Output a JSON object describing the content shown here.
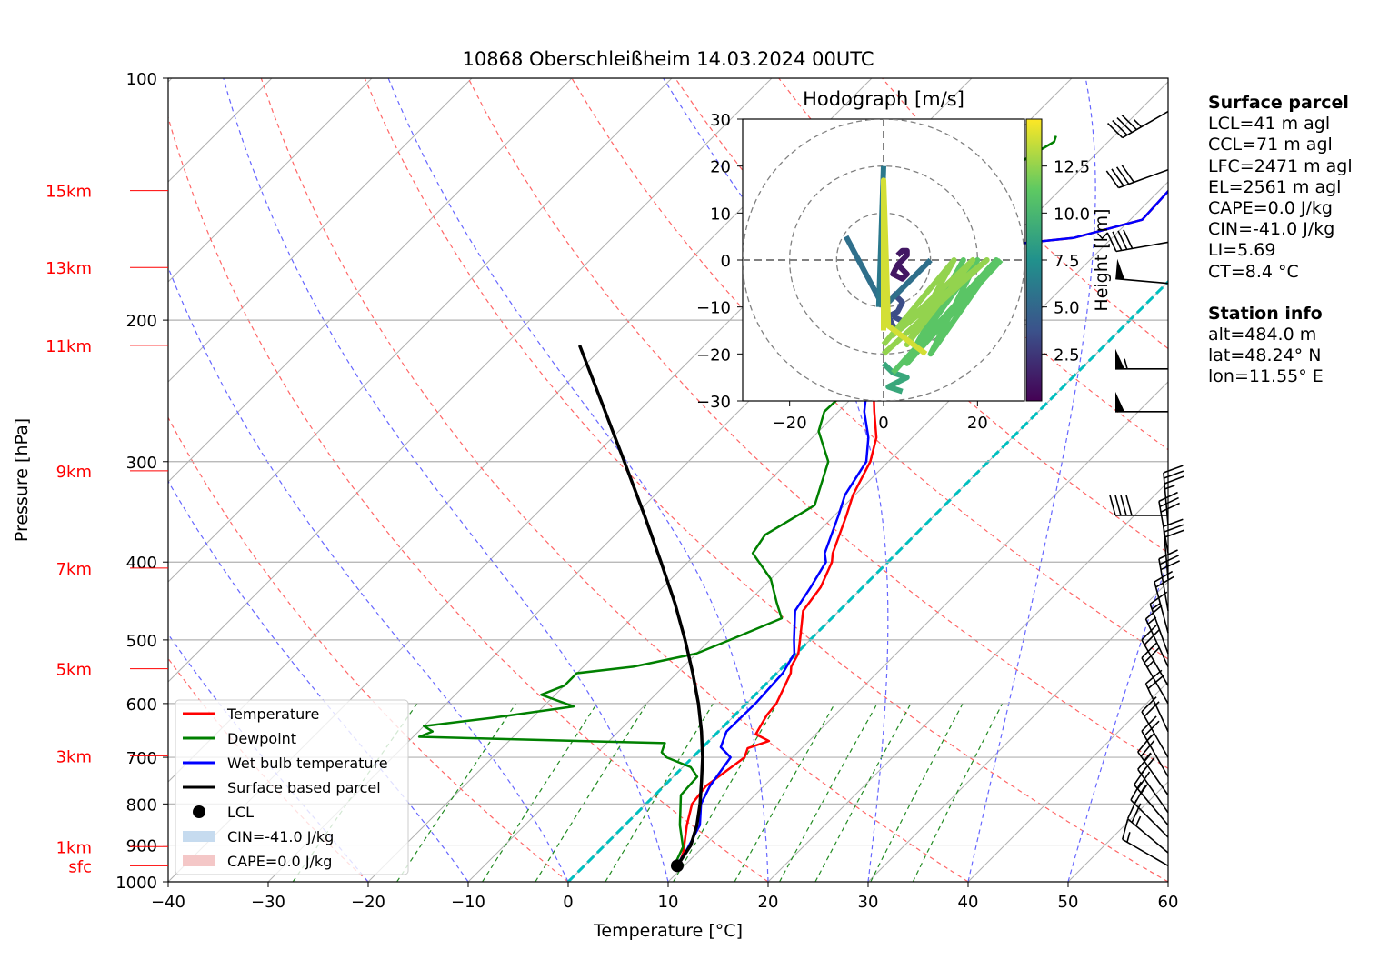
{
  "title": "10868 Oberschleißheim 14.03.2024 00UTC",
  "colors": {
    "temperature": "#ff0000",
    "dewpoint": "#008000",
    "wetbulb": "#0000ff",
    "parcel": "#000000",
    "dry_adiabat": "#ff6666",
    "moist_adiabat": "#6666ff",
    "mixing_ratio": "#228b22",
    "freezing_line": "#00bfbf",
    "height_label": "#ff0000"
  },
  "chart_data": {
    "type": "line",
    "subtype": "skew-t log-p",
    "title": "10868 Oberschleißheim 14.03.2024 00UTC",
    "xlabel": "Temperature [°C]",
    "ylabel": "Pressure [hPa]",
    "xlim": [
      -40,
      60
    ],
    "ylim": [
      1000,
      100
    ],
    "y_scale": "log",
    "grid": true,
    "legend_position": "lower-left",
    "x_ticks": [
      "−40",
      "−30",
      "−20",
      "−10",
      "0",
      "10",
      "20",
      "30",
      "40",
      "50",
      "60"
    ],
    "y_ticks": [
      "100",
      "200",
      "300",
      "400",
      "500",
      "600",
      "700",
      "800",
      "900",
      "1000"
    ],
    "height_labels": [
      {
        "label": "15km",
        "p": 138
      },
      {
        "label": "13km",
        "p": 172
      },
      {
        "label": "11km",
        "p": 215
      },
      {
        "label": "9km",
        "p": 308
      },
      {
        "label": "7km",
        "p": 407
      },
      {
        "label": "5km",
        "p": 543
      },
      {
        "label": "3km",
        "p": 697
      },
      {
        "label": "1km",
        "p": 904
      },
      {
        "label": "sfc",
        "p": 955
      }
    ],
    "series": [
      {
        "name": "Temperature",
        "points": [
          [
            9.4,
            955
          ],
          [
            8.6,
            920
          ],
          [
            6.2,
            850
          ],
          [
            4.6,
            800
          ],
          [
            4.2,
            760
          ],
          [
            5.2,
            700
          ],
          [
            4.6,
            682
          ],
          [
            6,
            668
          ],
          [
            4.0,
            655
          ],
          [
            3.2,
            620
          ],
          [
            3.0,
            600
          ],
          [
            1.4,
            550
          ],
          [
            0.8,
            540
          ],
          [
            0.2,
            520
          ],
          [
            -1,
            500
          ],
          [
            -3.6,
            460
          ],
          [
            -4.2,
            430
          ],
          [
            -5.6,
            400
          ],
          [
            -6.4,
            390
          ],
          [
            -8.8,
            350
          ],
          [
            -10.2,
            330
          ],
          [
            -11.8,
            300
          ],
          [
            -13.6,
            280
          ],
          [
            -16.4,
            260
          ],
          [
            -20.8,
            230
          ],
          [
            -24,
            210
          ],
          [
            -21.2,
            162
          ],
          [
            -13.8,
            158
          ],
          [
            -8.8,
            150
          ],
          [
            -9.2,
            132
          ],
          [
            -6.6,
            128
          ],
          [
            -6.2,
            122
          ],
          [
            -3.6,
            118
          ],
          [
            -3.8,
            115
          ],
          [
            -2.6,
            110
          ],
          [
            -3.0,
            107
          ]
        ]
      },
      {
        "name": "Dewpoint",
        "points": [
          [
            9.0,
            955
          ],
          [
            8.0,
            905
          ],
          [
            5.5,
            850
          ],
          [
            2.6,
            780
          ],
          [
            2.4,
            740
          ],
          [
            0.8,
            720
          ],
          [
            -2.6,
            700
          ],
          [
            -3.6,
            690
          ],
          [
            -4.2,
            672
          ],
          [
            -29.4,
            660
          ],
          [
            -28.6,
            650
          ],
          [
            -30,
            640
          ],
          [
            -24,
            625
          ],
          [
            -17,
            605
          ],
          [
            -21.4,
            585
          ],
          [
            -20,
            570
          ],
          [
            -20,
            550
          ],
          [
            -15,
            540
          ],
          [
            -10,
            520
          ],
          [
            -8,
            500
          ],
          [
            -5,
            470
          ],
          [
            -7,
            450
          ],
          [
            -10,
            420
          ],
          [
            -14.4,
            390
          ],
          [
            -15,
            370
          ],
          [
            -13,
            340
          ],
          [
            -16,
            300
          ],
          [
            -20,
            275
          ],
          [
            -21.4,
            260
          ],
          [
            -21.2,
            240
          ],
          [
            -24.8,
            220
          ],
          [
            -25.8,
            200
          ],
          [
            -29.6,
            185
          ],
          [
            -29,
            178
          ],
          [
            -30.4,
            168
          ],
          [
            -31,
            155
          ],
          [
            -30.8,
            148
          ],
          [
            -28,
            138
          ],
          [
            -26.4,
            125
          ],
          [
            -25.4,
            120
          ],
          [
            -25.8,
            118
          ]
        ]
      },
      {
        "name": "Wet bulb temperature",
        "points": [
          [
            9.2,
            955
          ],
          [
            8.8,
            920
          ],
          [
            7.5,
            850
          ],
          [
            5.5,
            800
          ],
          [
            4.6,
            760
          ],
          [
            3.8,
            700
          ],
          [
            1.8,
            680
          ],
          [
            0.8,
            650
          ],
          [
            0.9,
            600
          ],
          [
            0.6,
            550
          ],
          [
            -0.2,
            520
          ],
          [
            -1.6,
            500
          ],
          [
            -4.4,
            460
          ],
          [
            -5.2,
            430
          ],
          [
            -6.2,
            400
          ],
          [
            -7.2,
            390
          ],
          [
            -9.6,
            350
          ],
          [
            -11,
            330
          ],
          [
            -12.2,
            300
          ],
          [
            -14.4,
            280
          ],
          [
            -17.4,
            260
          ],
          [
            -21.2,
            230
          ],
          [
            -24,
            210
          ],
          [
            -21.2,
            162
          ],
          [
            -13.8,
            158
          ],
          [
            -8.8,
            150
          ],
          [
            -9.2,
            132
          ],
          [
            -6.6,
            128
          ],
          [
            -6.2,
            122
          ],
          [
            -3.6,
            118
          ],
          [
            -3.8,
            115
          ],
          [
            -2.6,
            110
          ],
          [
            -3.0,
            107
          ]
        ]
      },
      {
        "name": "Surface based parcel",
        "points": [
          [
            9.3,
            955
          ],
          [
            8.6,
            900
          ],
          [
            7.2,
            850
          ],
          [
            5.4,
            800
          ],
          [
            3.3,
            750
          ],
          [
            1.0,
            700
          ],
          [
            -1.7,
            650
          ],
          [
            -4.8,
            600
          ],
          [
            -8.4,
            550
          ],
          [
            -12.5,
            500
          ],
          [
            -17.2,
            450
          ],
          [
            -22.7,
            400
          ],
          [
            -29.0,
            350
          ],
          [
            -36.4,
            300
          ],
          [
            -45.2,
            250
          ],
          [
            -52.5,
            215
          ]
        ]
      }
    ],
    "lcl": {
      "name": "LCL",
      "t": 9.3,
      "p": 955
    },
    "legend": [
      "Temperature",
      "Dewpoint",
      "Wet bulb temperature",
      "Surface based parcel",
      "LCL",
      "CIN=-41.0 J/kg",
      "CAPE=0.0 J/kg"
    ],
    "freezing_line_t": 0,
    "dry_adiabats_theta_c": [
      -40,
      -20,
      0,
      20,
      40,
      60,
      80,
      100,
      120,
      140,
      160
    ],
    "moist_adiabats_t_c": [
      -20,
      -10,
      0,
      10,
      20,
      30,
      40,
      50
    ],
    "mixing_ratio_lines_gpkg": [
      0.4,
      1,
      2,
      3,
      5,
      8,
      12,
      16,
      20,
      28,
      36
    ],
    "wind_barbs": [
      {
        "p": 955,
        "dir": 300,
        "speed_kt": 15
      },
      {
        "p": 920,
        "dir": 310,
        "speed_kt": 25
      },
      {
        "p": 880,
        "dir": 315,
        "speed_kt": 20
      },
      {
        "p": 850,
        "dir": 320,
        "speed_kt": 25
      },
      {
        "p": 820,
        "dir": 325,
        "speed_kt": 20
      },
      {
        "p": 780,
        "dir": 325,
        "speed_kt": 25
      },
      {
        "p": 740,
        "dir": 330,
        "speed_kt": 25
      },
      {
        "p": 700,
        "dir": 330,
        "speed_kt": 20
      },
      {
        "p": 650,
        "dir": 335,
        "speed_kt": 20
      },
      {
        "p": 600,
        "dir": 330,
        "speed_kt": 25
      },
      {
        "p": 570,
        "dir": 330,
        "speed_kt": 20
      },
      {
        "p": 540,
        "dir": 335,
        "speed_kt": 15
      },
      {
        "p": 520,
        "dir": 340,
        "speed_kt": 15
      },
      {
        "p": 490,
        "dir": 345,
        "speed_kt": 20
      },
      {
        "p": 460,
        "dir": 350,
        "speed_kt": 30
      },
      {
        "p": 420,
        "dir": 355,
        "speed_kt": 30
      },
      {
        "p": 390,
        "dir": 350,
        "speed_kt": 30
      },
      {
        "p": 360,
        "dir": 355,
        "speed_kt": 35
      },
      {
        "p": 350,
        "dir": 270,
        "speed_kt": 40
      },
      {
        "p": 260,
        "dir": 270,
        "speed_kt": 50
      },
      {
        "p": 230,
        "dir": 270,
        "speed_kt": 55
      },
      {
        "p": 180,
        "dir": 275,
        "speed_kt": 50
      },
      {
        "p": 160,
        "dir": 260,
        "speed_kt": 40
      },
      {
        "p": 130,
        "dir": 250,
        "speed_kt": 40
      },
      {
        "p": 110,
        "dir": 240,
        "speed_kt": 45
      }
    ]
  },
  "hodograph": {
    "title": "Hodograph [m/s]",
    "xlim": [
      -30,
      30
    ],
    "ylim": [
      -30,
      30
    ],
    "x_ticks": [
      "−20",
      "0",
      "20"
    ],
    "y_ticks": [
      "30",
      "20",
      "10",
      "0",
      "−10",
      "−20",
      "−30"
    ],
    "rings_ms": [
      10,
      20,
      30
    ],
    "colorbar_label": "Height [km]",
    "colorbar_ticks": [
      "12.5",
      "10.0",
      "7.5",
      "5.0",
      "2.5"
    ],
    "colorbar_max": 15,
    "traces": [
      {
        "h": 1.0,
        "pts": [
          [
            3,
            -1
          ],
          [
            4,
            -2
          ],
          [
            5,
            -3
          ],
          [
            4,
            -4
          ],
          [
            2,
            -3
          ],
          [
            3,
            -1
          ],
          [
            5,
            1
          ],
          [
            5,
            2
          ],
          [
            4,
            2
          ],
          [
            3,
            1
          ]
        ]
      },
      {
        "h": 3.5,
        "pts": [
          [
            2,
            -7
          ],
          [
            4,
            -9
          ],
          [
            3,
            -11
          ],
          [
            1,
            -12
          ],
          [
            2,
            -14
          ],
          [
            3,
            -15
          ],
          [
            4,
            -13
          ],
          [
            2,
            -12
          ]
        ]
      },
      {
        "h": 5.5,
        "pts": [
          [
            -8,
            5
          ],
          [
            0,
            -10
          ],
          [
            10,
            0
          ]
        ]
      },
      {
        "h": 6.0,
        "pts": [
          [
            0,
            20
          ],
          [
            -1,
            -10
          ]
        ]
      },
      {
        "h": 9.0,
        "pts": [
          [
            0,
            -22
          ],
          [
            2,
            -24
          ],
          [
            5,
            -25
          ],
          [
            3,
            -26
          ],
          [
            1,
            -27
          ],
          [
            4,
            -28
          ]
        ]
      },
      {
        "h": 11.0,
        "pts": [
          [
            2,
            -24
          ],
          [
            24,
            0
          ],
          [
            10,
            -20
          ],
          [
            20,
            0
          ],
          [
            7,
            -18
          ],
          [
            17,
            0
          ],
          [
            5,
            -22
          ],
          [
            25,
            0
          ]
        ]
      },
      {
        "h": 12.5,
        "pts": [
          [
            0,
            -18
          ],
          [
            15,
            0
          ],
          [
            5,
            -18
          ],
          [
            19,
            0
          ],
          [
            2,
            -16
          ],
          [
            22,
            0
          ],
          [
            0,
            -20
          ]
        ]
      },
      {
        "h": 14.0,
        "pts": [
          [
            0,
            -15
          ],
          [
            0,
            17
          ],
          [
            1,
            -14
          ],
          [
            9,
            -20
          ]
        ]
      }
    ]
  },
  "info": {
    "surface_heading": "Surface parcel",
    "surface_lines": [
      "LCL=41 m agl",
      "CCL=71 m agl",
      "LFC=2471 m agl",
      "EL=2561 m agl",
      "CAPE=0.0 J/kg",
      "CIN=-41.0 J/kg",
      "LI=5.69",
      "CT=8.4 °C"
    ],
    "station_heading": "Station info",
    "station_lines": [
      "alt=484.0 m",
      "lat=48.24° N",
      "lon=11.55° E"
    ]
  }
}
